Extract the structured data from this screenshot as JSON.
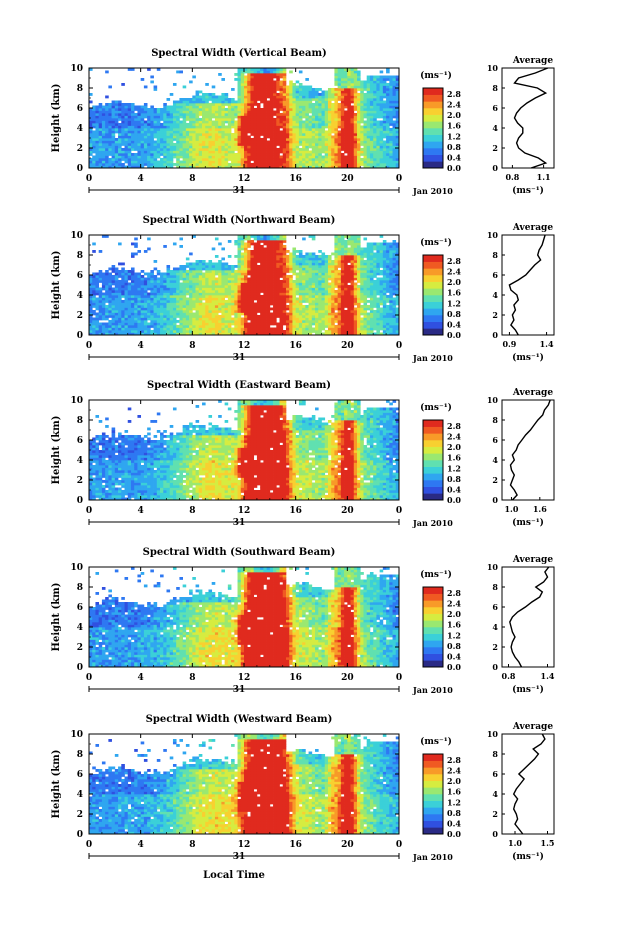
{
  "figure": {
    "xlabel": "Local Time",
    "date_label": "Jan 2010",
    "day_label": "31",
    "colorbar_unit": "(ms⁻¹)",
    "avg_title": "Average",
    "avg_xlabel": "(ms⁻¹)"
  },
  "colors": {
    "scale": [
      "#2a2a85",
      "#3050e0",
      "#2e78f2",
      "#2fa6f0",
      "#3bd0d8",
      "#60e0b0",
      "#9ae870",
      "#d6ec40",
      "#f8d030",
      "#f89a28",
      "#f05a22",
      "#e02a1e"
    ]
  },
  "chart_data": [
    {
      "type": "heatmap",
      "title": "Spectral Width (Vertical Beam)",
      "xlabel": "Local Time",
      "ylabel": "Height (km)",
      "xlim": [
        0,
        24
      ],
      "ylim": [
        0,
        10
      ],
      "xticks": [
        "0",
        "4",
        "8",
        "12",
        "16",
        "20",
        "0"
      ],
      "yticks": [
        "0",
        "2",
        "4",
        "6",
        "8",
        "10"
      ],
      "colorbar": {
        "unit": "(ms⁻¹)",
        "ticks": [
          "2.8",
          "2.4",
          "2.0",
          "1.6",
          "1.2",
          "0.8",
          "0.4",
          "0.0"
        ],
        "range": [
          0,
          2.8
        ]
      },
      "average": {
        "xticks": [
          "0.8",
          "1.1"
        ],
        "xlim": [
          0.7,
          1.2
        ],
        "profile": [
          [
            0,
            0.98
          ],
          [
            0.5,
            1.12
          ],
          [
            1,
            1.05
          ],
          [
            1.5,
            0.92
          ],
          [
            2,
            0.86
          ],
          [
            2.5,
            0.84
          ],
          [
            3,
            0.86
          ],
          [
            3.5,
            0.9
          ],
          [
            4,
            0.9
          ],
          [
            4.5,
            0.85
          ],
          [
            5,
            0.82
          ],
          [
            5.5,
            0.84
          ],
          [
            6,
            0.88
          ],
          [
            6.5,
            0.94
          ],
          [
            7,
            1.02
          ],
          [
            7.5,
            1.12
          ],
          [
            8,
            1.04
          ],
          [
            8.5,
            0.82
          ],
          [
            9,
            0.86
          ],
          [
            9.5,
            1.02
          ],
          [
            10,
            1.14
          ]
        ]
      }
    },
    {
      "type": "heatmap",
      "title": "Spectral Width (Northward Beam)",
      "xlabel": "Local Time",
      "ylabel": "Height (km)",
      "xlim": [
        0,
        24
      ],
      "ylim": [
        0,
        10
      ],
      "xticks": [
        "0",
        "4",
        "8",
        "12",
        "16",
        "20",
        "0"
      ],
      "yticks": [
        "0",
        "2",
        "4",
        "6",
        "8",
        "10"
      ],
      "colorbar": {
        "unit": "(ms⁻¹)",
        "ticks": [
          "2.8",
          "2.4",
          "2.0",
          "1.6",
          "1.2",
          "0.8",
          "0.4",
          "0.0"
        ],
        "range": [
          0,
          2.8
        ]
      },
      "average": {
        "xticks": [
          "0.9",
          "1.4"
        ],
        "xlim": [
          0.8,
          1.5
        ],
        "profile": [
          [
            0,
            1.02
          ],
          [
            0.5,
            0.98
          ],
          [
            1,
            0.92
          ],
          [
            1.5,
            0.96
          ],
          [
            2,
            0.94
          ],
          [
            2.5,
            0.98
          ],
          [
            3,
            0.96
          ],
          [
            3.5,
            1.02
          ],
          [
            4,
            1.0
          ],
          [
            4.5,
            0.92
          ],
          [
            5,
            0.9
          ],
          [
            5.5,
            1.02
          ],
          [
            6,
            1.12
          ],
          [
            6.5,
            1.18
          ],
          [
            7,
            1.24
          ],
          [
            7.5,
            1.32
          ],
          [
            8,
            1.28
          ],
          [
            8.5,
            1.3
          ],
          [
            9,
            1.34
          ],
          [
            9.5,
            1.36
          ],
          [
            10,
            1.38
          ]
        ]
      }
    },
    {
      "type": "heatmap",
      "title": "Spectral Width (Eastward Beam)",
      "xlabel": "Local Time",
      "ylabel": "Height (km)",
      "xlim": [
        0,
        24
      ],
      "ylim": [
        0,
        10
      ],
      "xticks": [
        "0",
        "4",
        "8",
        "12",
        "16",
        "20",
        "0"
      ],
      "yticks": [
        "0",
        "2",
        "4",
        "6",
        "8",
        "10"
      ],
      "colorbar": {
        "unit": "(ms⁻¹)",
        "ticks": [
          "2.8",
          "2.4",
          "2.0",
          "1.6",
          "1.2",
          "0.8",
          "0.4",
          "0.0"
        ],
        "range": [
          0,
          2.8
        ]
      },
      "average": {
        "xticks": [
          "1.0",
          "1.6"
        ],
        "xlim": [
          0.8,
          1.9
        ],
        "profile": [
          [
            0,
            1.02
          ],
          [
            0.5,
            1.12
          ],
          [
            1,
            1.06
          ],
          [
            1.5,
            0.98
          ],
          [
            2,
            1.02
          ],
          [
            2.5,
            1.06
          ],
          [
            3,
            1.0
          ],
          [
            3.5,
            0.98
          ],
          [
            4,
            1.06
          ],
          [
            4.5,
            1.02
          ],
          [
            5,
            1.1
          ],
          [
            5.5,
            1.14
          ],
          [
            6,
            1.22
          ],
          [
            6.5,
            1.3
          ],
          [
            7,
            1.4
          ],
          [
            7.5,
            1.48
          ],
          [
            8,
            1.56
          ],
          [
            8.5,
            1.66
          ],
          [
            9,
            1.7
          ],
          [
            9.5,
            1.78
          ],
          [
            10,
            1.82
          ]
        ]
      }
    },
    {
      "type": "heatmap",
      "title": "Spectral Width (Southward Beam)",
      "xlabel": "Local Time",
      "ylabel": "Height (km)",
      "xlim": [
        0,
        24
      ],
      "ylim": [
        0,
        10
      ],
      "xticks": [
        "0",
        "4",
        "8",
        "12",
        "16",
        "20",
        "0"
      ],
      "yticks": [
        "0",
        "2",
        "4",
        "6",
        "8",
        "10"
      ],
      "colorbar": {
        "unit": "(ms⁻¹)",
        "ticks": [
          "2.8",
          "2.4",
          "2.0",
          "1.6",
          "1.2",
          "0.8",
          "0.4",
          "0.0"
        ],
        "range": [
          0,
          2.8
        ]
      },
      "average": {
        "xticks": [
          "0.8",
          "1.4"
        ],
        "xlim": [
          0.7,
          1.5
        ],
        "profile": [
          [
            0,
            1.0
          ],
          [
            0.5,
            0.96
          ],
          [
            1,
            0.9
          ],
          [
            1.5,
            0.86
          ],
          [
            2,
            0.84
          ],
          [
            2.5,
            0.86
          ],
          [
            3,
            0.9
          ],
          [
            3.5,
            0.86
          ],
          [
            4,
            0.84
          ],
          [
            4.5,
            0.82
          ],
          [
            5,
            0.86
          ],
          [
            5.5,
            0.94
          ],
          [
            6,
            1.06
          ],
          [
            6.5,
            1.16
          ],
          [
            7,
            1.28
          ],
          [
            7.5,
            1.32
          ],
          [
            8,
            1.22
          ],
          [
            8.5,
            1.34
          ],
          [
            9,
            1.4
          ],
          [
            9.5,
            1.36
          ],
          [
            10,
            1.42
          ]
        ]
      }
    },
    {
      "type": "heatmap",
      "title": "Spectral Width (Westward Beam)",
      "xlabel": "Local Time",
      "ylabel": "Height (km)",
      "xlim": [
        0,
        24
      ],
      "ylim": [
        0,
        10
      ],
      "xticks": [
        "0",
        "4",
        "8",
        "12",
        "16",
        "20",
        "0"
      ],
      "yticks": [
        "0",
        "2",
        "4",
        "6",
        "8",
        "10"
      ],
      "colorbar": {
        "unit": "(ms⁻¹)",
        "ticks": [
          "2.8",
          "2.4",
          "2.0",
          "1.6",
          "1.2",
          "0.8",
          "0.4",
          "0.0"
        ],
        "range": [
          0,
          2.8
        ]
      },
      "average": {
        "xticks": [
          "1.0",
          "1.5"
        ],
        "xlim": [
          0.8,
          1.6
        ],
        "profile": [
          [
            0,
            1.12
          ],
          [
            0.5,
            1.06
          ],
          [
            1,
            1.0
          ],
          [
            1.5,
            1.04
          ],
          [
            2,
            1.02
          ],
          [
            2.5,
            0.98
          ],
          [
            3,
            1.0
          ],
          [
            3.5,
            1.04
          ],
          [
            4,
            0.98
          ],
          [
            4.5,
            1.02
          ],
          [
            5,
            1.08
          ],
          [
            5.5,
            1.14
          ],
          [
            6,
            1.06
          ],
          [
            6.5,
            1.14
          ],
          [
            7,
            1.22
          ],
          [
            7.5,
            1.3
          ],
          [
            8,
            1.36
          ],
          [
            8.5,
            1.28
          ],
          [
            9,
            1.4
          ],
          [
            9.5,
            1.46
          ],
          [
            10,
            1.42
          ]
        ]
      }
    }
  ]
}
